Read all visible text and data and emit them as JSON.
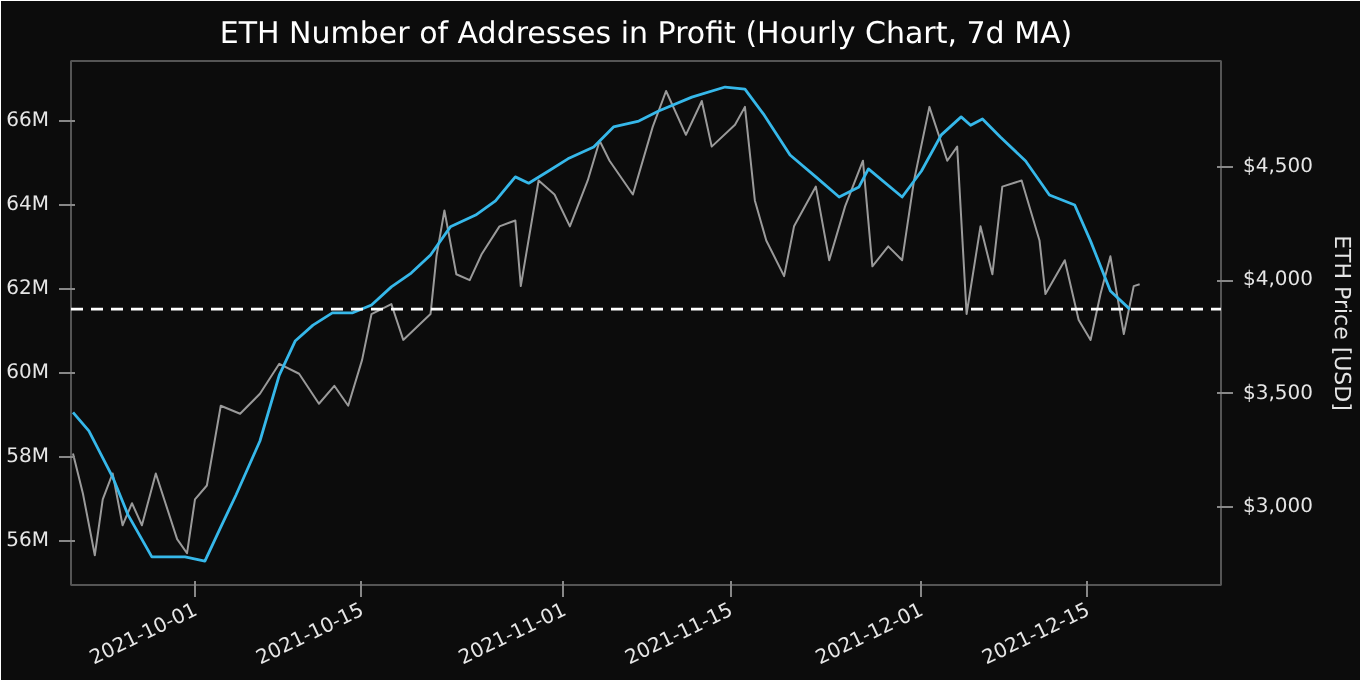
{
  "chart_data": {
    "type": "line",
    "title": "ETH Number of Addresses in Profit (Hourly Chart, 7d MA)",
    "y2label": "ETH Price [USD]",
    "xlim": [
      "2021-09-20T14:00",
      "2021-12-26T05:00"
    ],
    "xticks": [
      "2021-10-01",
      "2021-10-15",
      "2021-11-01",
      "2021-11-15",
      "2021-12-01",
      "2021-12-15"
    ],
    "ylim": [
      54.95,
      67.43
    ],
    "yticks": [
      {
        "value": 56,
        "label": "56M"
      },
      {
        "value": 58,
        "label": "58M"
      },
      {
        "value": 60,
        "label": "60M"
      },
      {
        "value": 62,
        "label": "62M"
      },
      {
        "value": 64,
        "label": "64M"
      },
      {
        "value": 66,
        "label": "66M"
      }
    ],
    "y2lim": [
      2658,
      4965
    ],
    "y2ticks": [
      {
        "value": 3000,
        "label": "$3,000"
      },
      {
        "value": 3500,
        "label": "$3,500"
      },
      {
        "value": 4000,
        "label": "$4,000"
      },
      {
        "value": 4500,
        "label": "$4,500"
      }
    ],
    "grid": false,
    "line_style": "solid",
    "ref_lines": [
      {
        "axis": "y",
        "value": 61.52,
        "color": "#ffffff",
        "line_style": "dashed"
      }
    ],
    "series": [
      {
        "axis": "y2",
        "color": "#9a9a9a",
        "x": [
          "2021-09-20T18:00",
          "2021-09-21T14:00",
          "2021-09-22T14:00",
          "2021-09-23T06:00",
          "2021-09-24T02:00",
          "2021-09-24T22:00",
          "2021-09-25T17:00",
          "2021-09-26T13:00",
          "2021-09-27T17:00",
          "2021-09-29T12:00",
          "2021-09-30T08:00",
          "2021-10-01T00:00",
          "2021-10-02T00:00",
          "2021-10-03T04:00",
          "2021-10-04T19:00",
          "2021-10-06T11:00",
          "2021-10-08T02:00",
          "2021-10-09T18:00",
          "2021-10-11T10:00",
          "2021-10-12T17:00",
          "2021-10-13T21:00",
          "2021-10-15T01:00",
          "2021-10-15T20:00",
          "2021-10-17T12:00",
          "2021-10-18T12:00",
          "2021-10-20T19:00",
          "2021-10-21T07:00",
          "2021-10-21T23:00",
          "2021-10-22T23:00",
          "2021-10-24T02:00",
          "2021-10-25T02:00",
          "2021-10-26T14:00",
          "2021-10-27T22:00",
          "2021-10-28T09:00",
          "2021-10-29T21:00",
          "2021-10-31T05:00",
          "2021-11-01T12:00",
          "2021-11-03T00:00",
          "2021-11-04T00:00",
          "2021-11-04T20:00",
          "2021-11-06T19:00",
          "2021-11-08T11:00",
          "2021-11-09T14:00",
          "2021-11-11T06:00",
          "2021-11-12T14:00",
          "2021-11-13T10:00",
          "2021-11-15T09:00",
          "2021-11-16T05:00",
          "2021-11-17T01:00",
          "2021-11-18T00:00",
          "2021-11-19T12:00",
          "2021-11-20T08:00",
          "2021-11-22T04:00",
          "2021-11-23T07:00",
          "2021-11-24T15:00",
          "2021-11-26T03:00",
          "2021-11-26T22:00",
          "2021-11-28T06:00",
          "2021-11-29T10:00",
          "2021-11-30T10:00",
          "2021-12-01T17:00",
          "2021-12-03T05:00",
          "2021-12-04T01:00",
          "2021-12-04T20:00",
          "2021-12-06T00:00",
          "2021-12-07T00:00",
          "2021-12-07T20:00",
          "2021-12-09T11:00",
          "2021-12-10T23:00",
          "2021-12-11T11:00",
          "2021-12-13T02:00",
          "2021-12-14T06:00",
          "2021-12-15T06:00",
          "2021-12-16T02:00",
          "2021-12-16T22:00",
          "2021-12-18T01:00",
          "2021-12-18T21:00",
          "2021-12-19T09:00"
        ],
        "values": [
          3237,
          3061,
          2789,
          3035,
          3149,
          2921,
          3018,
          2921,
          3149,
          2860,
          2798,
          3035,
          3096,
          3447,
          3412,
          3500,
          3632,
          3588,
          3456,
          3535,
          3447,
          3649,
          3851,
          3895,
          3737,
          3851,
          4105,
          4307,
          4026,
          4000,
          4114,
          4237,
          4263,
          3974,
          4439,
          4377,
          4237,
          4439,
          4614,
          4526,
          4377,
          4675,
          4833,
          4640,
          4789,
          4588,
          4684,
          4763,
          4351,
          4175,
          4018,
          4237,
          4412,
          4088,
          4325,
          4526,
          4061,
          4149,
          4088,
          4439,
          4763,
          4526,
          4588,
          3851,
          4237,
          4026,
          4412,
          4439,
          4175,
          3939,
          4088,
          3825,
          3737,
          3939,
          4105,
          3763,
          3974,
          3982
        ]
      },
      {
        "axis": "y",
        "color": "#36b8ea",
        "x": [
          "2021-09-20T18:00",
          "2021-09-22T02:00",
          "2021-09-24T02:00",
          "2021-09-25T09:00",
          "2021-09-27T09:00",
          "2021-09-28T05:00",
          "2021-09-30T04:00",
          "2021-10-01T20:00",
          "2021-10-03T04:00",
          "2021-10-04T11:00",
          "2021-10-06T11:00",
          "2021-10-08T02:00",
          "2021-10-09T10:00",
          "2021-10-10T22:00",
          "2021-10-12T13:00",
          "2021-10-14T05:00",
          "2021-10-15T20:00",
          "2021-10-17T12:00",
          "2021-10-19T04:00",
          "2021-10-20T19:00",
          "2021-10-22T11:00",
          "2021-10-24T14:00",
          "2021-10-26T06:00",
          "2021-10-27T22:00",
          "2021-10-29T01:00",
          "2021-10-30T17:00",
          "2021-11-01T08:00",
          "2021-11-03T12:00",
          "2021-11-05T04:00",
          "2021-11-07T07:00",
          "2021-11-08T23:00",
          "2021-11-11T18:00",
          "2021-11-14T13:00",
          "2021-11-16T05:00",
          "2021-11-17T20:00",
          "2021-11-20T00:00",
          "2021-11-22T04:00",
          "2021-11-24T03:00",
          "2021-11-25T19:00",
          "2021-11-26T14:00",
          "2021-11-29T10:00",
          "2021-12-01T01:00",
          "2021-12-02T17:00",
          "2021-12-04T09:00",
          "2021-12-05T04:00",
          "2021-12-06T04:00",
          "2021-12-07T16:00",
          "2021-12-09T19:00",
          "2021-12-11T19:00",
          "2021-12-13T22:00",
          "2021-12-15T06:00",
          "2021-12-16T22:00",
          "2021-12-18T13:00"
        ],
        "values": [
          59.06,
          58.62,
          57.52,
          56.62,
          55.62,
          55.62,
          55.62,
          55.52,
          56.33,
          57.1,
          58.38,
          59.95,
          60.76,
          61.14,
          61.43,
          61.43,
          61.62,
          62.05,
          62.38,
          62.81,
          63.48,
          63.76,
          64.1,
          64.67,
          64.52,
          64.81,
          65.1,
          65.38,
          65.86,
          66.0,
          66.24,
          66.57,
          66.81,
          66.76,
          66.14,
          65.19,
          64.67,
          64.19,
          64.43,
          64.86,
          64.19,
          64.81,
          65.67,
          66.1,
          65.9,
          66.05,
          65.62,
          65.05,
          64.24,
          64.0,
          63.14,
          61.95,
          61.52
        ]
      }
    ]
  }
}
